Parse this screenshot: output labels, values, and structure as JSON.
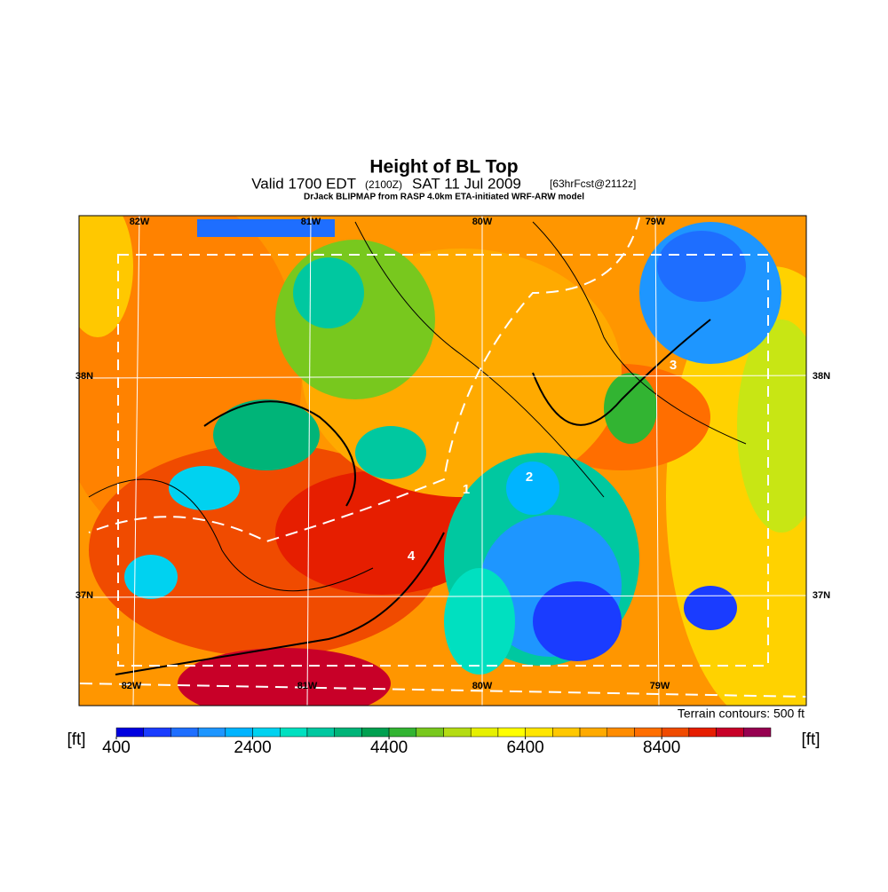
{
  "header": {
    "title": "Height of BL Top",
    "valid": "Valid 1700 EDT",
    "utc": "(2100Z)",
    "date": "SAT 11 Jul 2009",
    "forecast": "[63hrFcst@2112z]",
    "source": "DrJack BLIPMAP from RASP 4.0km ETA-initiated WRF-ARW model"
  },
  "map": {
    "lon_labels": [
      "82W",
      "81W",
      "80W",
      "79W"
    ],
    "lat_labels": [
      "38N",
      "37N"
    ],
    "markers": [
      "1",
      "2",
      "3",
      "4"
    ],
    "note": "Terrain contours: 500 ft"
  },
  "colorbar": {
    "range": [
      400,
      10000
    ],
    "ticks": [
      400,
      2400,
      4400,
      6400,
      8400
    ],
    "unit_left": "[ft]",
    "unit_right": "[ft]",
    "colors": [
      "#0000e0",
      "#1a3cff",
      "#1e6eff",
      "#1e96ff",
      "#00b4ff",
      "#00d2f0",
      "#00e0c0",
      "#00c8a0",
      "#00b478",
      "#00a050",
      "#32b432",
      "#78c81e",
      "#b4dc14",
      "#e6f000",
      "#ffff00",
      "#ffe600",
      "#ffc800",
      "#ffaa00",
      "#ff8c00",
      "#ff6e00",
      "#f04b00",
      "#e61e00",
      "#c80028",
      "#960050"
    ]
  }
}
